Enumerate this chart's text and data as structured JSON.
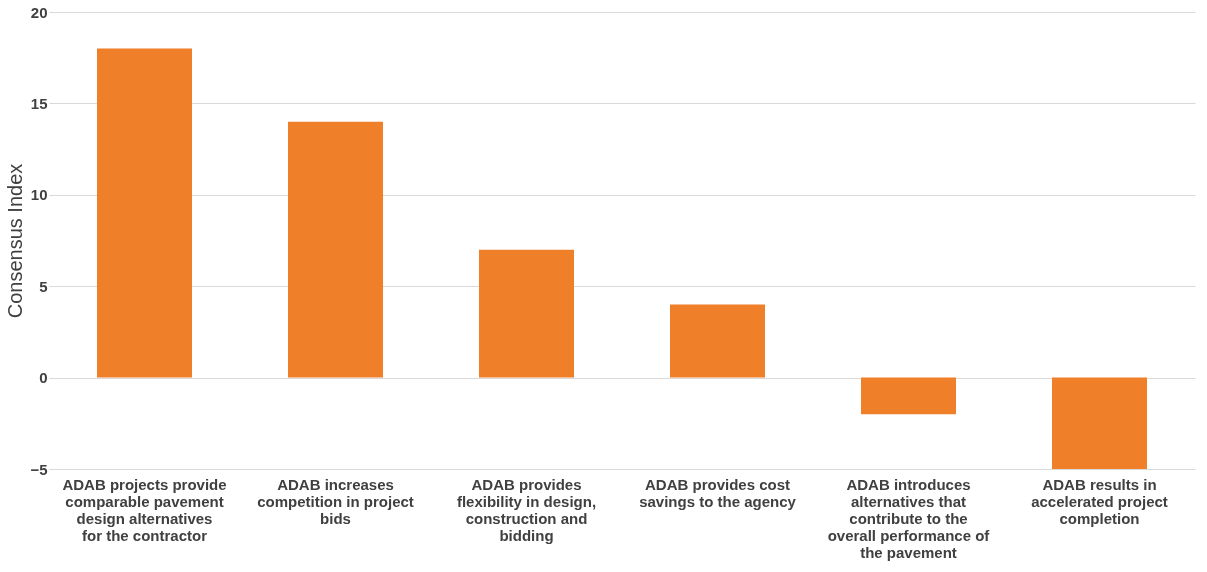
{
  "chart_data": {
    "type": "bar",
    "ylabel": "Consensus Index",
    "categories": [
      "ADAB projects provide comparable pavement design alternatives for the contractor",
      "ADAB increases competition in project bids",
      "ADAB provides flexibility in design, construction and bidding",
      "ADAB provides cost savings to the agency",
      "ADAB introduces alternatives that contribute to the overall performance of the pavement",
      "ADAB results in accelerated project completion"
    ],
    "values": [
      18,
      14,
      7,
      4,
      -2,
      -5
    ],
    "color": "#f07f2a",
    "ylim": [
      -5,
      20
    ],
    "yticks": [
      -5,
      0,
      5,
      10,
      15,
      20
    ],
    "grid": "y"
  }
}
